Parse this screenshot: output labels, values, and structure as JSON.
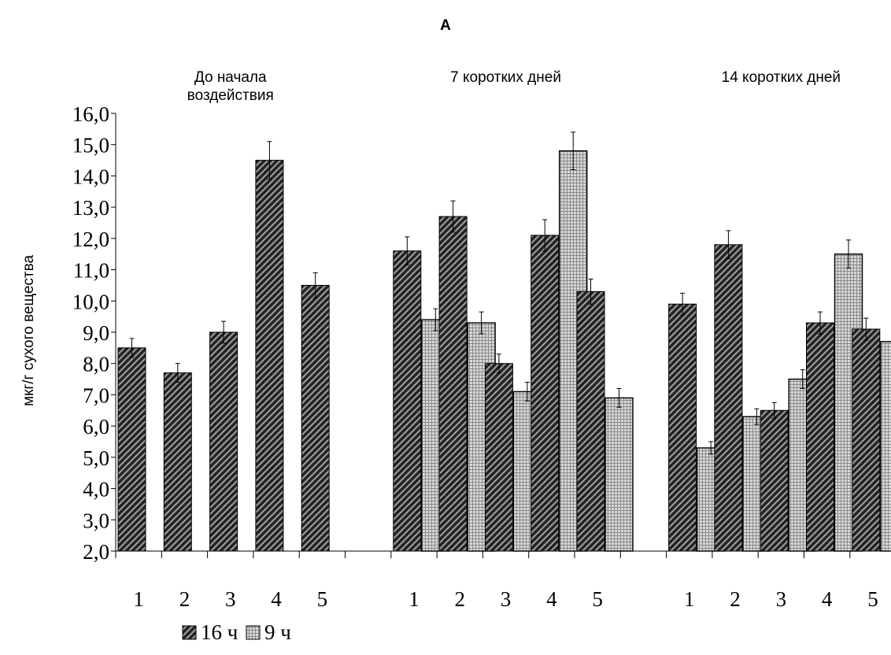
{
  "chart_data": {
    "type": "bar",
    "title": "А",
    "ylabel": "мкг/г сухого вещества",
    "xlabel": "",
    "ylim": [
      2.0,
      16.0
    ],
    "ytick_step": 1.0,
    "yticks": [
      "2,0",
      "3,0",
      "4,0",
      "5,0",
      "6,0",
      "7,0",
      "8,0",
      "9,0",
      "10,0",
      "11,0",
      "12,0",
      "13,0",
      "14,0",
      "15,0",
      "16,0"
    ],
    "legend_position": "bottom-left",
    "grid": false,
    "series": [
      {
        "name": "16 ч",
        "pattern": "diagonal-hatch",
        "color": "#222222"
      },
      {
        "name": "9 ч",
        "pattern": "grid-hatch",
        "color": "#999999"
      }
    ],
    "groups": [
      {
        "label": "До начала воздействия",
        "label_lines": [
          "До начала",
          "воздействия"
        ],
        "categories": [
          "1",
          "2",
          "3",
          "4",
          "5"
        ],
        "values": {
          "16 ч": [
            8.5,
            7.7,
            9.0,
            14.5,
            10.5
          ],
          "9 ч": [
            null,
            null,
            null,
            null,
            null
          ]
        },
        "errors": {
          "16 ч": [
            0.3,
            0.3,
            0.35,
            0.6,
            0.4
          ],
          "9 ч": [
            null,
            null,
            null,
            null,
            null
          ]
        }
      },
      {
        "label": "7 коротких дней",
        "label_lines": [
          "7 коротких дней"
        ],
        "categories": [
          "1",
          "2",
          "3",
          "4",
          "5"
        ],
        "values": {
          "16 ч": [
            11.6,
            12.7,
            8.0,
            12.1,
            10.3
          ],
          "9 ч": [
            9.4,
            9.3,
            7.1,
            14.8,
            6.9
          ]
        },
        "errors": {
          "16 ч": [
            0.45,
            0.5,
            0.3,
            0.5,
            0.4
          ],
          "9 ч": [
            0.35,
            0.35,
            0.3,
            0.6,
            0.3
          ]
        }
      },
      {
        "label": "14 коротких дней",
        "label_lines": [
          "14 коротких дней"
        ],
        "categories": [
          "1",
          "2",
          "3",
          "4",
          "5"
        ],
        "values": {
          "16 ч": [
            9.9,
            11.8,
            6.5,
            9.3,
            9.1
          ],
          "9 ч": [
            5.3,
            6.3,
            7.5,
            11.5,
            8.7
          ]
        },
        "errors": {
          "16 ч": [
            0.35,
            0.45,
            0.25,
            0.35,
            0.35
          ],
          "9 ч": [
            0.2,
            0.25,
            0.3,
            0.45,
            0.35
          ]
        }
      }
    ]
  }
}
